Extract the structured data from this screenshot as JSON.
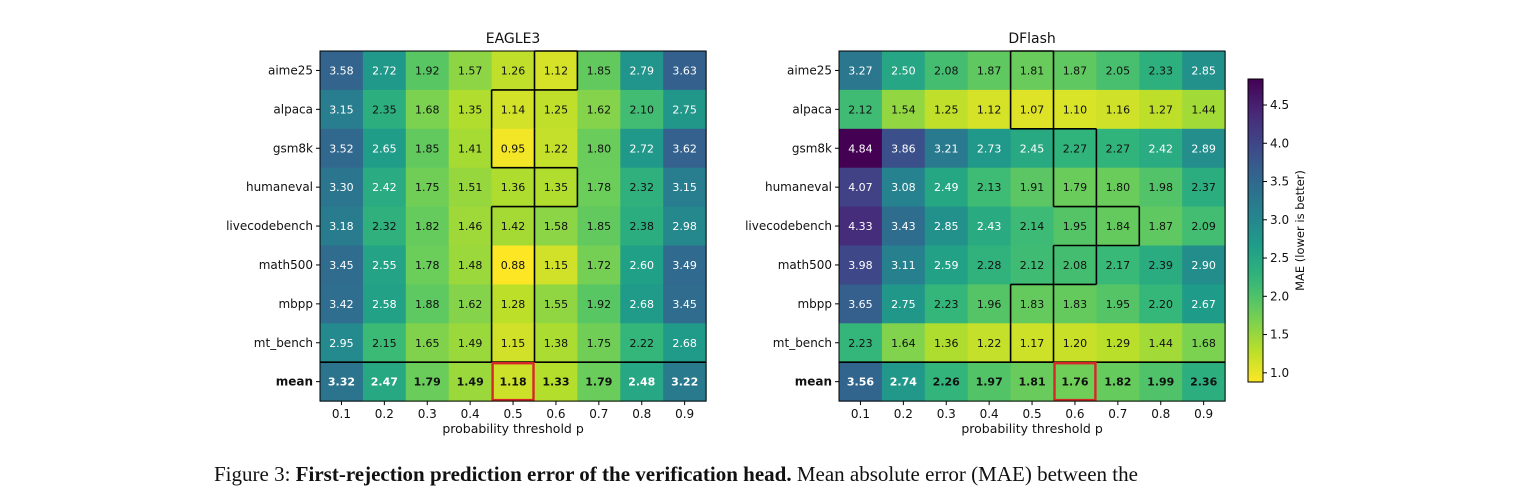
{
  "chart_data": [
    {
      "type": "heatmap",
      "title": "EAGLE3",
      "xlabel": "probability threshold p",
      "ylabel": "",
      "x": [
        "0.1",
        "0.2",
        "0.3",
        "0.4",
        "0.5",
        "0.6",
        "0.7",
        "0.8",
        "0.9"
      ],
      "rows": [
        "aime25",
        "alpaca",
        "gsm8k",
        "humaneval",
        "livecodebench",
        "math500",
        "mbpp",
        "mt_bench",
        "mean"
      ],
      "values": [
        [
          3.58,
          2.72,
          1.92,
          1.57,
          1.26,
          1.12,
          1.85,
          2.79,
          3.63
        ],
        [
          3.15,
          2.35,
          1.68,
          1.35,
          1.14,
          1.25,
          1.62,
          2.1,
          2.75
        ],
        [
          3.52,
          2.65,
          1.85,
          1.41,
          0.95,
          1.22,
          1.8,
          2.72,
          3.62
        ],
        [
          3.3,
          2.42,
          1.75,
          1.51,
          1.36,
          1.35,
          1.78,
          2.32,
          3.15
        ],
        [
          3.18,
          2.32,
          1.82,
          1.46,
          1.42,
          1.58,
          1.85,
          2.38,
          2.98
        ],
        [
          3.45,
          2.55,
          1.78,
          1.48,
          0.88,
          1.15,
          1.72,
          2.6,
          3.49
        ],
        [
          3.42,
          2.58,
          1.88,
          1.62,
          1.28,
          1.55,
          1.92,
          2.68,
          3.45
        ],
        [
          2.95,
          2.15,
          1.65,
          1.49,
          1.15,
          1.38,
          1.75,
          2.22,
          2.68
        ],
        [
          3.32,
          2.47,
          1.79,
          1.49,
          1.18,
          1.33,
          1.79,
          2.48,
          3.22
        ]
      ],
      "best_per_row": [
        5,
        4,
        4,
        5,
        4,
        4,
        4,
        4,
        4
      ]
    },
    {
      "type": "heatmap",
      "title": "DFlash",
      "xlabel": "probability threshold p",
      "ylabel": "",
      "x": [
        "0.1",
        "0.2",
        "0.3",
        "0.4",
        "0.5",
        "0.6",
        "0.7",
        "0.8",
        "0.9"
      ],
      "rows": [
        "aime25",
        "alpaca",
        "gsm8k",
        "humaneval",
        "livecodebench",
        "math500",
        "mbpp",
        "mt_bench",
        "mean"
      ],
      "values": [
        [
          3.27,
          2.5,
          2.08,
          1.87,
          1.81,
          1.87,
          2.05,
          2.33,
          2.85
        ],
        [
          2.12,
          1.54,
          1.25,
          1.12,
          1.07,
          1.1,
          1.16,
          1.27,
          1.44
        ],
        [
          4.84,
          3.86,
          3.21,
          2.73,
          2.45,
          2.27,
          2.27,
          2.42,
          2.89
        ],
        [
          4.07,
          3.08,
          2.49,
          2.13,
          1.91,
          1.79,
          1.8,
          1.98,
          2.37
        ],
        [
          4.33,
          3.43,
          2.85,
          2.43,
          2.14,
          1.95,
          1.84,
          1.87,
          2.09
        ],
        [
          3.98,
          3.11,
          2.59,
          2.28,
          2.12,
          2.08,
          2.17,
          2.39,
          2.9
        ],
        [
          3.65,
          2.75,
          2.23,
          1.96,
          1.83,
          1.83,
          1.95,
          2.2,
          2.67
        ],
        [
          2.23,
          1.64,
          1.36,
          1.22,
          1.17,
          1.2,
          1.29,
          1.44,
          1.68
        ],
        [
          3.56,
          2.74,
          2.26,
          1.97,
          1.81,
          1.76,
          1.82,
          1.99,
          2.36
        ]
      ],
      "best_per_row": [
        4,
        4,
        5,
        5,
        6,
        5,
        4,
        4,
        5
      ]
    }
  ],
  "colorbar": {
    "label": "MAE  (lower is better)",
    "min": 0.88,
    "max": 4.84,
    "ticks": [
      "1.0",
      "1.5",
      "2.0",
      "2.5",
      "3.0",
      "3.5",
      "4.0",
      "4.5"
    ],
    "tick_values": [
      1.0,
      1.5,
      2.0,
      2.5,
      3.0,
      3.5,
      4.0,
      4.5
    ]
  },
  "style": {
    "best_border_color": "#000000",
    "overall_best_border_color": "#d62728",
    "colormap": "viridis_r"
  },
  "caption": {
    "prefix": "Figure 3: ",
    "bold": "First-rejection prediction error of the verification head.",
    "rest": " Mean absolute error (MAE) between the"
  }
}
